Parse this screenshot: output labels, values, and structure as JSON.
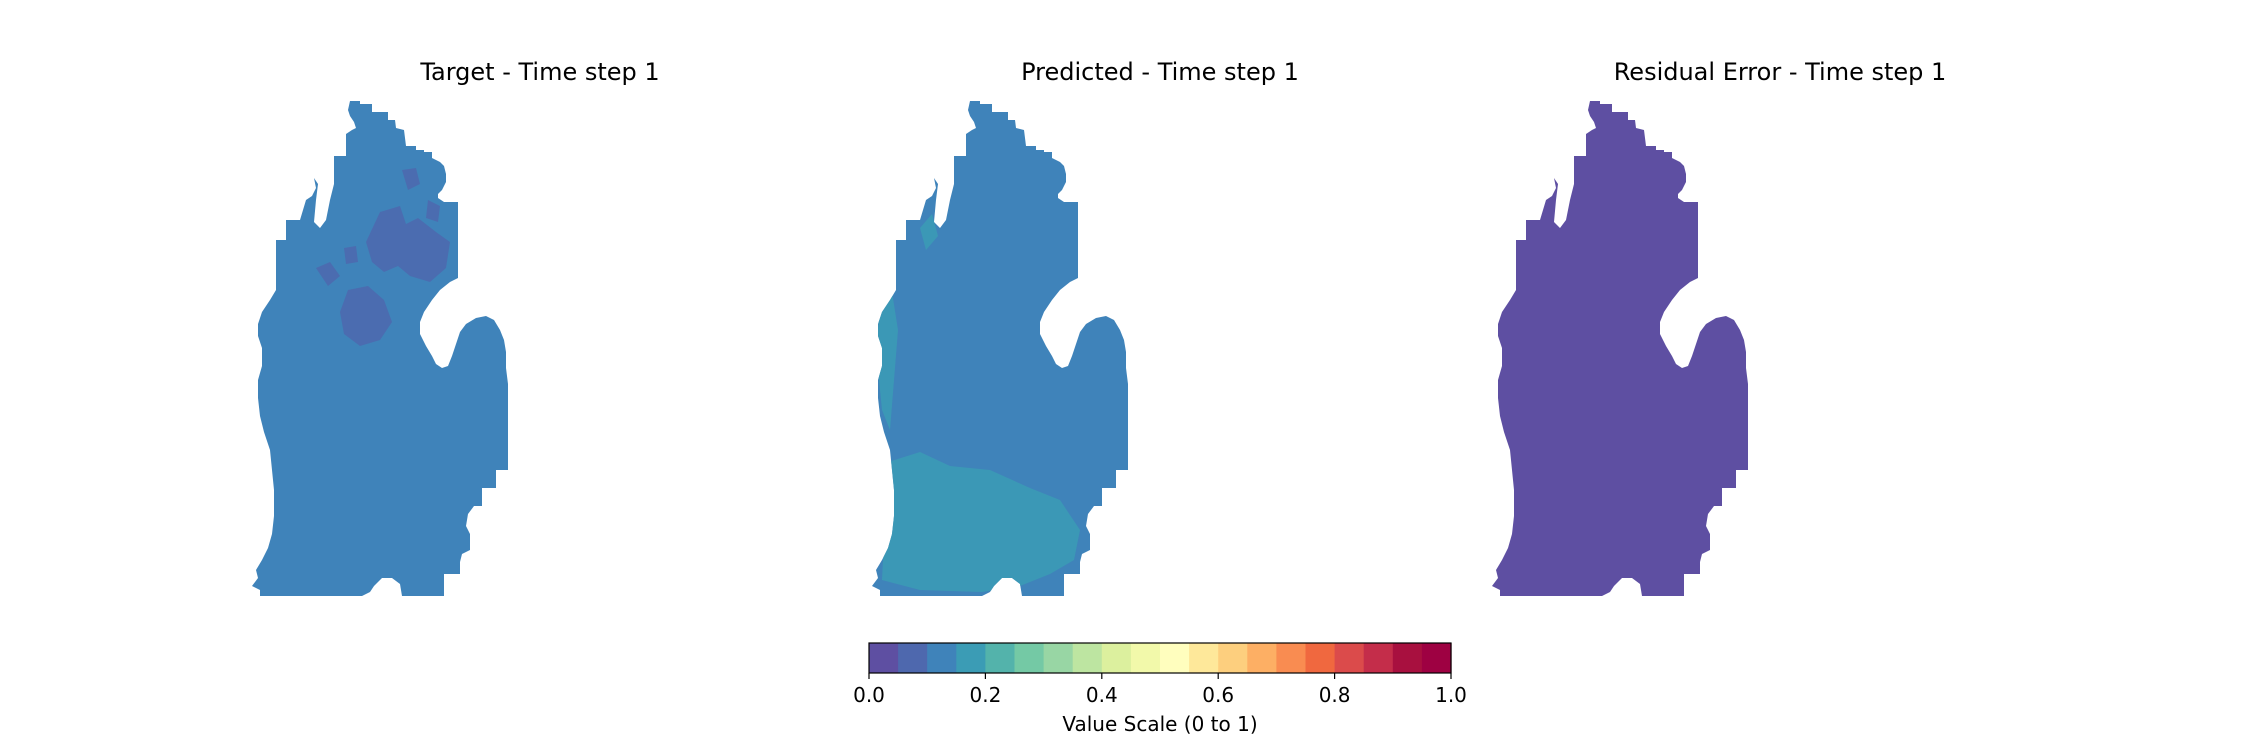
{
  "figure": {
    "colorbar_label": "Value Scale (0 to 1)"
  },
  "chart_data": [
    {
      "type": "heatmap",
      "title": "Target - Time step 1",
      "region": "michigan-lower-peninsula",
      "base_value": 0.1,
      "patches": [
        {
          "area": "north-central",
          "value": 0.05
        }
      ],
      "colormap": "Spectral_r",
      "vmin": 0.0,
      "vmax": 1.0
    },
    {
      "type": "heatmap",
      "title": "Predicted - Time step 1",
      "region": "michigan-lower-peninsula",
      "base_value": 0.1,
      "patches": [
        {
          "area": "south",
          "value": 0.15
        },
        {
          "area": "west-coast",
          "value": 0.15
        }
      ],
      "colormap": "Spectral_r",
      "vmin": 0.0,
      "vmax": 1.0
    },
    {
      "type": "heatmap",
      "title": "Residual Error - Time step 1",
      "region": "michigan-lower-peninsula",
      "base_value": 0.0,
      "patches": [],
      "colormap": "Spectral_r",
      "vmin": 0.0,
      "vmax": 1.0
    }
  ],
  "colorbar": {
    "levels": 20,
    "vmin": 0.0,
    "vmax": 1.0,
    "ticks": [
      "0.0",
      "0.2",
      "0.4",
      "0.6",
      "0.8",
      "1.0"
    ],
    "colors": [
      "#5e4fa2",
      "#4e68ae",
      "#3f83ba",
      "#3b9cb5",
      "#53b3ab",
      "#74c9a5",
      "#98d6a4",
      "#bde5a1",
      "#dcf09e",
      "#f2f9aa",
      "#fffebe",
      "#fee89a",
      "#fdcf7e",
      "#fdaf64",
      "#f98c51",
      "#f0683f",
      "#db4b4b",
      "#c42d4a",
      "#a8103f",
      "#9e0142"
    ]
  }
}
